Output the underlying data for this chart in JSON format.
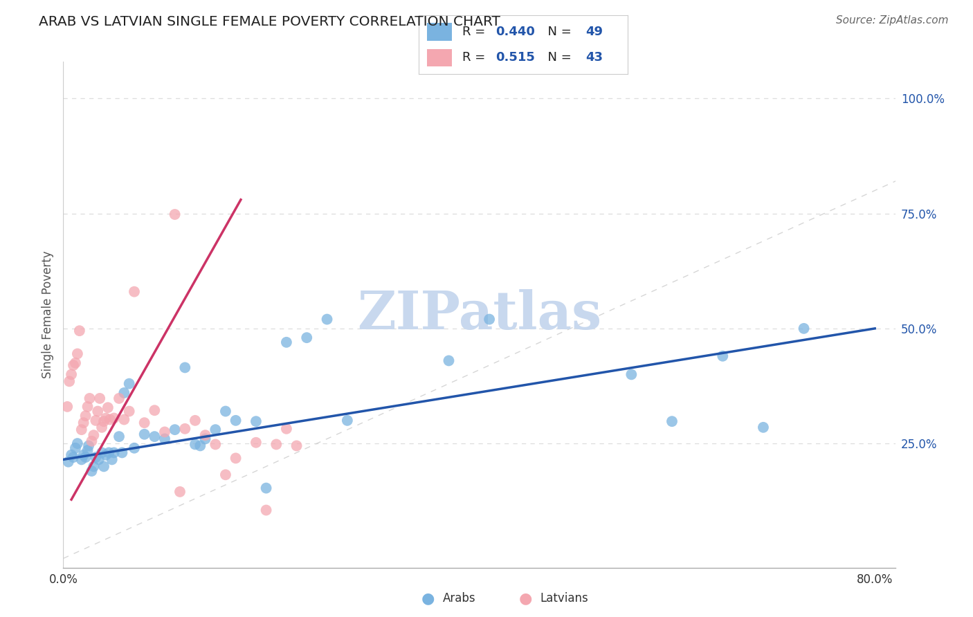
{
  "title": "ARAB VS LATVIAN SINGLE FEMALE POVERTY CORRELATION CHART",
  "source": "Source: ZipAtlas.com",
  "ylabel": "Single Female Poverty",
  "xlim": [
    0.0,
    0.82
  ],
  "ylim": [
    -0.02,
    1.08
  ],
  "yticks": [
    0.25,
    0.5,
    0.75,
    1.0
  ],
  "ytick_labels": [
    "25.0%",
    "50.0%",
    "75.0%",
    "100.0%"
  ],
  "xticks": [
    0.0,
    0.1,
    0.2,
    0.3,
    0.4,
    0.5,
    0.6,
    0.7,
    0.8
  ],
  "xtick_labels": [
    "0.0%",
    "",
    "",
    "",
    "",
    "",
    "",
    "",
    "80.0%"
  ],
  "arab_R": 0.44,
  "arab_N": 49,
  "latvian_R": 0.515,
  "latvian_N": 43,
  "arab_color": "#7ab3e0",
  "latvian_color": "#f4a7b0",
  "arab_line_color": "#2255aa",
  "latvian_line_color": "#cc3366",
  "ref_line_color": "#cccccc",
  "grid_color": "#dddddd",
  "watermark": "ZIPatlas",
  "watermark_color": "#c8d8ee",
  "legend_label_arab": "Arabs",
  "legend_label_latvian": "Latvians",
  "arab_x": [
    0.005,
    0.008,
    0.01,
    0.012,
    0.014,
    0.018,
    0.02,
    0.022,
    0.024,
    0.025,
    0.028,
    0.03,
    0.032,
    0.035,
    0.038,
    0.04,
    0.042,
    0.045,
    0.048,
    0.05,
    0.055,
    0.058,
    0.06,
    0.065,
    0.07,
    0.08,
    0.09,
    0.1,
    0.11,
    0.12,
    0.13,
    0.135,
    0.14,
    0.15,
    0.16,
    0.17,
    0.19,
    0.2,
    0.22,
    0.24,
    0.26,
    0.28,
    0.38,
    0.42,
    0.56,
    0.6,
    0.65,
    0.69,
    0.73
  ],
  "arab_y": [
    0.21,
    0.225,
    0.22,
    0.24,
    0.25,
    0.215,
    0.225,
    0.22,
    0.235,
    0.245,
    0.19,
    0.2,
    0.22,
    0.215,
    0.23,
    0.2,
    0.225,
    0.23,
    0.215,
    0.23,
    0.265,
    0.23,
    0.36,
    0.38,
    0.24,
    0.27,
    0.265,
    0.26,
    0.28,
    0.415,
    0.248,
    0.245,
    0.26,
    0.28,
    0.32,
    0.3,
    0.298,
    0.153,
    0.47,
    0.48,
    0.52,
    0.3,
    0.43,
    0.52,
    0.4,
    0.298,
    0.44,
    0.285,
    0.5
  ],
  "latvian_x": [
    0.004,
    0.006,
    0.008,
    0.01,
    0.012,
    0.014,
    0.016,
    0.018,
    0.02,
    0.022,
    0.024,
    0.026,
    0.028,
    0.03,
    0.032,
    0.034,
    0.036,
    0.038,
    0.04,
    0.042,
    0.044,
    0.046,
    0.05,
    0.055,
    0.06,
    0.065,
    0.07,
    0.08,
    0.09,
    0.1,
    0.11,
    0.115,
    0.12,
    0.13,
    0.14,
    0.15,
    0.16,
    0.17,
    0.19,
    0.2,
    0.21,
    0.22,
    0.23
  ],
  "latvian_y": [
    0.33,
    0.385,
    0.4,
    0.42,
    0.425,
    0.445,
    0.495,
    0.28,
    0.295,
    0.31,
    0.33,
    0.348,
    0.255,
    0.268,
    0.3,
    0.32,
    0.348,
    0.285,
    0.298,
    0.305,
    0.328,
    0.302,
    0.305,
    0.348,
    0.302,
    0.32,
    0.58,
    0.295,
    0.322,
    0.275,
    0.748,
    0.145,
    0.282,
    0.3,
    0.268,
    0.248,
    0.182,
    0.218,
    0.252,
    0.105,
    0.248,
    0.282,
    0.245
  ],
  "arab_trend_x": [
    0.0,
    0.8
  ],
  "arab_trend_y": [
    0.215,
    0.5
  ],
  "latvian_trend_x": [
    0.008,
    0.175
  ],
  "latvian_trend_y": [
    0.128,
    0.78
  ]
}
